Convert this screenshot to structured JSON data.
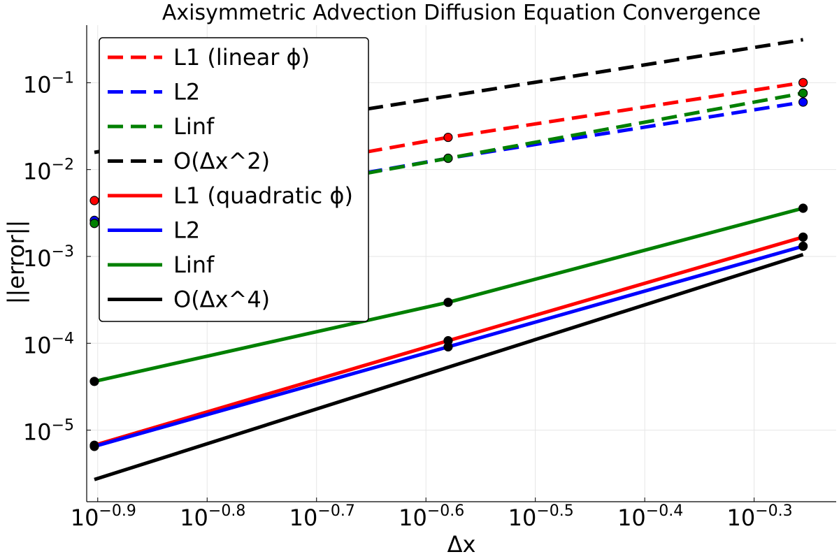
{
  "chart_data": {
    "type": "line",
    "title": "Axisymmetric Advection Diffusion Equation Convergence",
    "xlabel": "Δx",
    "ylabel": "||error||",
    "xscale": "log10",
    "yscale": "log10",
    "xlim": [
      0.123,
      0.5957
    ],
    "ylim": [
      1.5e-06,
      0.46
    ],
    "xticks": [
      {
        "value": 0.12589,
        "base": "10",
        "exp": "−0.9"
      },
      {
        "value": 0.15849,
        "base": "10",
        "exp": "−0.8"
      },
      {
        "value": 0.19953,
        "base": "10",
        "exp": "−0.7"
      },
      {
        "value": 0.25119,
        "base": "10",
        "exp": "−0.6"
      },
      {
        "value": 0.31623,
        "base": "10",
        "exp": "−0.5"
      },
      {
        "value": 0.39811,
        "base": "10",
        "exp": "−0.4"
      },
      {
        "value": 0.50119,
        "base": "10",
        "exp": "−0.3"
      }
    ],
    "yticks": [
      {
        "value": 1e-05,
        "base": "10",
        "exp": "−5"
      },
      {
        "value": 0.0001,
        "base": "10",
        "exp": "−4"
      },
      {
        "value": 0.001,
        "base": "10",
        "exp": "−3"
      },
      {
        "value": 0.01,
        "base": "10",
        "exp": "−2"
      },
      {
        "value": 0.1,
        "base": "10",
        "exp": "−1"
      }
    ],
    "grid": true,
    "legend_position": "top-left",
    "series": [
      {
        "name": "L1 (linear ϕ)",
        "color": "#ff0000",
        "dash": "dashed",
        "markers": true,
        "x": [
          0.125,
          0.2632,
          0.5556
        ],
        "y": [
          0.0044,
          0.0235,
          0.1003
        ]
      },
      {
        "name": "L2",
        "color": "#0000ff",
        "dash": "dashed",
        "markers": true,
        "x": [
          0.125,
          0.2632,
          0.5556
        ],
        "y": [
          0.0026,
          0.0135,
          0.0598
        ]
      },
      {
        "name": "Linf",
        "color": "#008000",
        "dash": "dashed",
        "markers": true,
        "x": [
          0.125,
          0.2632,
          0.5556
        ],
        "y": [
          0.0024,
          0.0135,
          0.0758
        ]
      },
      {
        "name": "O(Δx^2)",
        "color": "#000000",
        "dash": "dashed",
        "markers": false,
        "x": [
          0.125,
          0.5556
        ],
        "y": [
          0.0158,
          0.313
        ]
      },
      {
        "name": "L1 (quadratic ϕ)",
        "color": "#ff0000",
        "dash": "solid",
        "markers": true,
        "marker_color": "#000000",
        "x": [
          0.125,
          0.2632,
          0.5556
        ],
        "y": [
          6.7e-06,
          0.000107,
          0.00167
        ]
      },
      {
        "name": "L2",
        "color": "#0000ff",
        "dash": "solid",
        "markers": true,
        "marker_color": "#000000",
        "x": [
          0.125,
          0.2632,
          0.5556
        ],
        "y": [
          6.5e-06,
          9.1e-05,
          0.00131
        ]
      },
      {
        "name": "Linf",
        "color": "#008000",
        "dash": "solid",
        "markers": true,
        "marker_color": "#000000",
        "x": [
          0.125,
          0.2632,
          0.5556
        ],
        "y": [
          3.64e-05,
          0.000296,
          0.00359
        ]
      },
      {
        "name": "O(Δx^4)",
        "color": "#000000",
        "dash": "solid",
        "markers": false,
        "x": [
          0.125,
          0.5556
        ],
        "y": [
          2.7e-06,
          0.00105
        ]
      }
    ]
  }
}
